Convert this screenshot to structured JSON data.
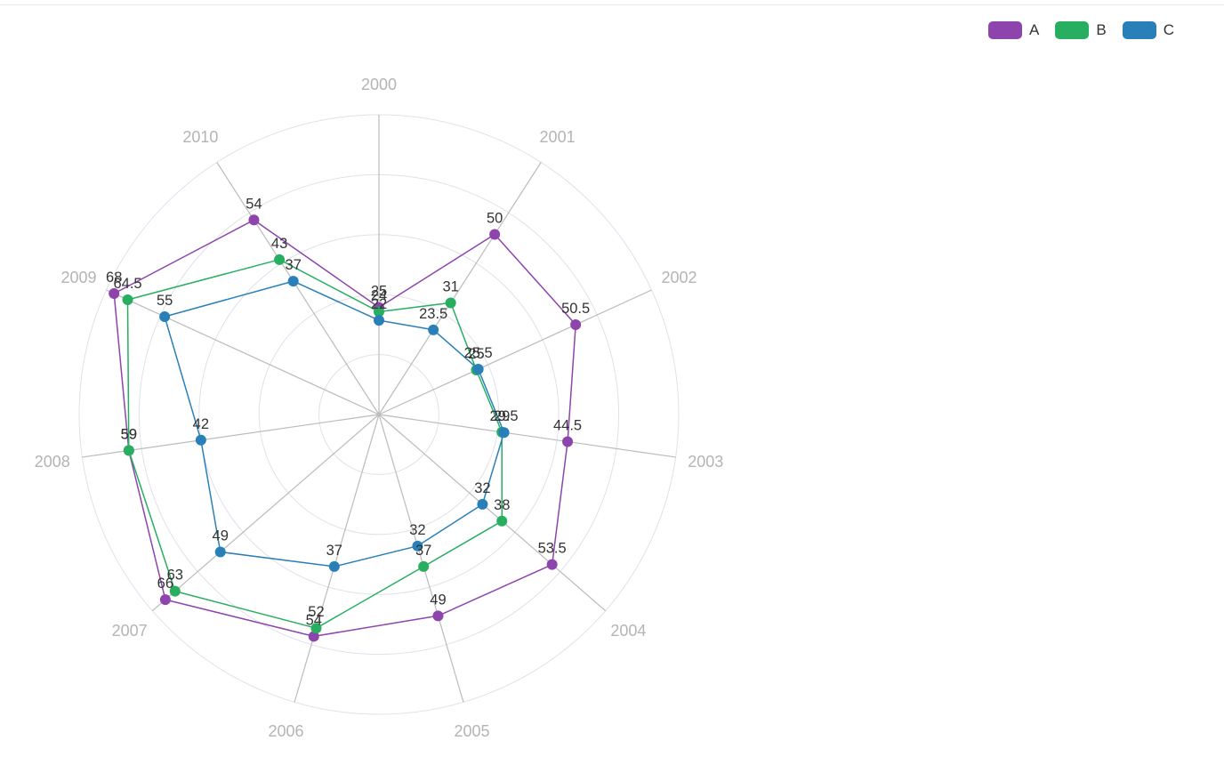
{
  "chart_data": {
    "type": "radar",
    "title": "",
    "indicators": [
      "2000",
      "2001",
      "2002",
      "2003",
      "2004",
      "2005",
      "2006",
      "2007",
      "2008",
      "2009",
      "2010"
    ],
    "max": 70,
    "split_number": 5,
    "legend_position": "top-right",
    "series": [
      {
        "name": "A",
        "color": "#8e44ad",
        "values": [
          25,
          50,
          50.5,
          44.5,
          53.5,
          49,
          54,
          66,
          59,
          68,
          54
        ]
      },
      {
        "name": "B",
        "color": "#27ae60",
        "values": [
          24,
          31,
          25,
          29,
          38,
          37,
          52,
          63,
          59,
          64.5,
          43
        ]
      },
      {
        "name": "C",
        "color": "#2980b9",
        "values": [
          22,
          23.5,
          25.5,
          29.5,
          32,
          32,
          37,
          49,
          42,
          55,
          37
        ]
      }
    ],
    "colors": {
      "split_line": "#e0e0ec",
      "axis_line": "#bbbbbb",
      "axis_name": "#b4b4b4",
      "label": "#333333"
    }
  }
}
